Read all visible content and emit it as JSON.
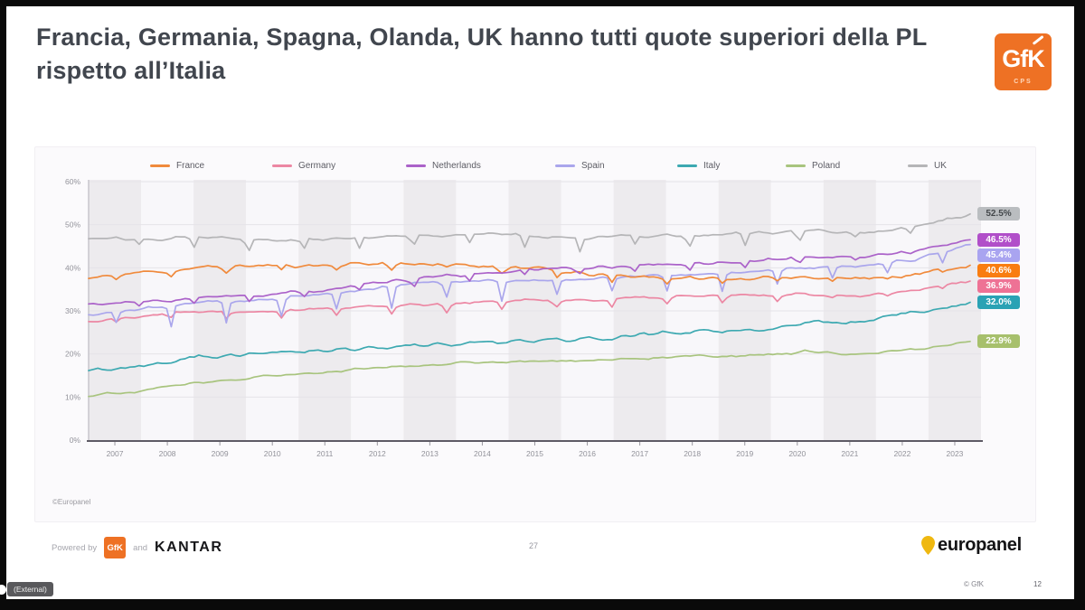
{
  "meeting_overlay": {
    "external_badge": "(External)"
  },
  "slide": {
    "title": "Francia, Germania, Spagna, Olanda, UK hanno tutti quote superiori della PL rispetto all’Italia",
    "logo": {
      "text": "GfK",
      "sub": "CPS"
    },
    "chart_footer": {
      "copyright": "©Europanel"
    },
    "footer": {
      "powered_by": "Powered by",
      "gfk_badge": "GfK",
      "and": "and",
      "kantar": "KANTAR",
      "page_number": "27",
      "europanel": "europanel"
    },
    "bottom_bar": {
      "copyright": "© GfK",
      "page": "12"
    }
  },
  "chart_data": {
    "type": "line",
    "x": [
      "2007",
      "2008",
      "2009",
      "2010",
      "2011",
      "2012",
      "2013",
      "2014",
      "2015",
      "2016",
      "2017",
      "2018",
      "2019",
      "2020",
      "2021",
      "2022",
      "2023"
    ],
    "ylim": [
      0,
      60
    ],
    "y_ticks": [
      "0%",
      "10%",
      "20%",
      "30%",
      "40%",
      "50%",
      "60%"
    ],
    "grid": "horizontal",
    "legend_position": "top",
    "background_stripes": "alternating-year-bands",
    "series": [
      {
        "name": "France",
        "color": "#f08a3c",
        "label_bg": "#f97d11",
        "label_text": "#ffffff",
        "end_label": "40.6%",
        "values": [
          37.5,
          39.0,
          40.0,
          40.5,
          40.5,
          41.0,
          41.0,
          40.5,
          40.0,
          38.5,
          38.0,
          37.5,
          37.5,
          38.0,
          37.5,
          38.5,
          40.6
        ]
      },
      {
        "name": "Germany",
        "color": "#ec87a3",
        "label_bg": "#ee7295",
        "label_text": "#ffffff",
        "end_label": "36.9%",
        "values": [
          27.5,
          29.0,
          30.0,
          30.0,
          30.5,
          31.0,
          31.5,
          32.0,
          32.5,
          32.5,
          33.0,
          33.5,
          33.5,
          34.0,
          33.5,
          35.0,
          36.9
        ]
      },
      {
        "name": "Netherlands",
        "color": "#ab62c9",
        "label_bg": "#b14fc9",
        "label_text": "#ffffff",
        "end_label": "46.5%",
        "values": [
          31.5,
          32.0,
          33.0,
          33.5,
          34.5,
          36.0,
          37.5,
          38.5,
          39.5,
          40.0,
          40.5,
          41.0,
          41.5,
          42.5,
          42.5,
          44.0,
          46.5
        ]
      },
      {
        "name": "Spain",
        "color": "#aaa6ec",
        "label_bg": "#a9a4f0",
        "label_text": "#ffffff",
        "end_label": "45.4%",
        "values": [
          29.0,
          30.5,
          32.0,
          32.5,
          33.5,
          35.0,
          36.5,
          37.0,
          37.0,
          37.5,
          38.0,
          38.5,
          39.0,
          40.0,
          40.5,
          42.0,
          45.4
        ]
      },
      {
        "name": "Italy",
        "color": "#3da9b1",
        "label_bg": "#2aa2b4",
        "label_text": "#ffffff",
        "end_label": "32.0%",
        "values": [
          16.0,
          17.5,
          19.5,
          20.0,
          20.5,
          21.5,
          22.0,
          22.5,
          23.0,
          23.5,
          24.5,
          25.0,
          25.5,
          27.0,
          27.5,
          29.5,
          32.0
        ]
      },
      {
        "name": "Poland",
        "color": "#a8c47e",
        "label_bg": "#a7c06c",
        "label_text": "#ffffff",
        "end_label": "22.9%",
        "values": [
          10.5,
          11.5,
          13.5,
          14.5,
          15.5,
          16.5,
          17.5,
          18.0,
          18.5,
          18.5,
          19.0,
          19.5,
          19.5,
          20.5,
          20.0,
          21.0,
          22.9
        ]
      },
      {
        "name": "UK",
        "color": "#b5b5b7",
        "label_bg": "#babdc0",
        "label_text": "#44484b",
        "end_label": "52.5%",
        "values": [
          47.0,
          46.5,
          47.5,
          46.5,
          46.5,
          47.0,
          47.5,
          48.0,
          47.5,
          47.0,
          47.5,
          47.5,
          48.0,
          48.5,
          48.0,
          49.5,
          52.5
        ]
      }
    ]
  }
}
